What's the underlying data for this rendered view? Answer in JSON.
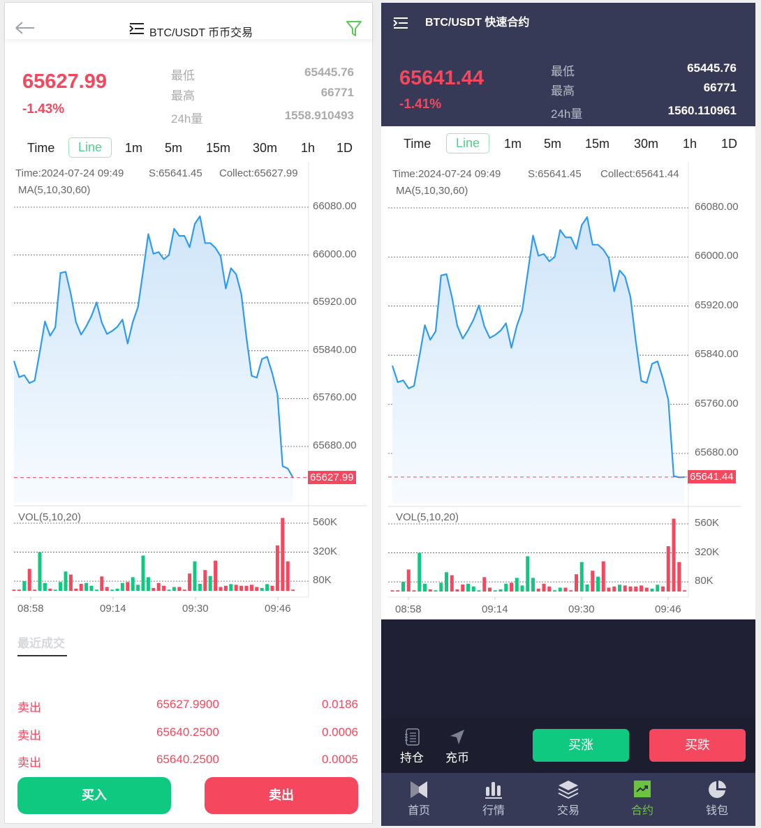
{
  "spot": {
    "header": {
      "title": "BTC/USDT 币币交易",
      "back_icon": "arrow-left-icon",
      "menu_icon": "menu-icon",
      "filter_icon": "filter-icon",
      "filter_color": "#5cc85a"
    },
    "price": "65627.99",
    "change": "-1.43%",
    "stats": [
      {
        "label": "最低",
        "value": "65445.76"
      },
      {
        "label": "最高",
        "value": "66771"
      },
      {
        "label": "24h量",
        "value": "1558.910493"
      }
    ],
    "tabs": [
      "Time",
      "Line",
      "1m",
      "5m",
      "15m",
      "30m",
      "1h",
      "1D"
    ],
    "active_tab": "Line",
    "info": {
      "time": "Time:2024-07-24 09:49",
      "s": "S:65641.45",
      "collect": "Collect:65627.99",
      "ma": "MA(5,10,30,60)",
      "vol": "VOL(5,10,20)"
    },
    "recent_title": "最近成交",
    "trades": [
      {
        "side": "卖出",
        "price": "65627.9900",
        "amount": "0.0186"
      },
      {
        "side": "卖出",
        "price": "65640.2500",
        "amount": "0.0006"
      },
      {
        "side": "卖出",
        "price": "65640.2500",
        "amount": "0.0005"
      }
    ],
    "buy_label": "买入",
    "sell_label": "卖出"
  },
  "contract": {
    "header": {
      "title": "BTC/USDT 快速合约",
      "menu_icon": "menu-icon"
    },
    "price": "65641.44",
    "change": "-1.41%",
    "stats": [
      {
        "label": "最低",
        "value": "65445.76"
      },
      {
        "label": "最高",
        "value": "66771"
      },
      {
        "label": "24h量",
        "value": "1560.110961"
      }
    ],
    "tabs": [
      "Time",
      "Line",
      "1m",
      "5m",
      "15m",
      "30m",
      "1h",
      "1D"
    ],
    "active_tab": "Line",
    "info": {
      "time": "Time:2024-07-24 09:49",
      "s": "S:65641.45",
      "collect": "Collect:65641.44",
      "ma": "MA(5,10,30,60)",
      "vol": "VOL(5,10,20)"
    },
    "actions": [
      {
        "label": "持仓",
        "icon": "notebook-icon"
      },
      {
        "label": "充币",
        "icon": "send-arrow-icon"
      }
    ],
    "buy_up_label": "买涨",
    "buy_down_label": "买跌",
    "nav": [
      {
        "label": "首页",
        "icon": "home-logo-icon"
      },
      {
        "label": "行情",
        "icon": "bar-chart-icon"
      },
      {
        "label": "交易",
        "icon": "layers-icon"
      },
      {
        "label": "合约",
        "icon": "trend-chart-icon",
        "active": true
      },
      {
        "label": "钱包",
        "icon": "pie-chart-icon"
      }
    ],
    "nav_active_color": "#6cc33f"
  },
  "colors": {
    "up": "#10c981",
    "down": "#f5475d",
    "line": "#2f9bf0"
  },
  "chart_data": [
    {
      "type": "line",
      "panel": "spot",
      "x": [
        "08:55",
        "08:56",
        "08:57",
        "08:58",
        "08:59",
        "09:00",
        "09:01",
        "09:02",
        "09:03",
        "09:04",
        "09:05",
        "09:06",
        "09:07",
        "09:08",
        "09:09",
        "09:10",
        "09:11",
        "09:12",
        "09:13",
        "09:14",
        "09:15",
        "09:16",
        "09:17",
        "09:18",
        "09:19",
        "09:20",
        "09:21",
        "09:22",
        "09:23",
        "09:24",
        "09:25",
        "09:26",
        "09:27",
        "09:28",
        "09:29",
        "09:30",
        "09:31",
        "09:32",
        "09:33",
        "09:34",
        "09:35",
        "09:36",
        "09:37",
        "09:38",
        "09:39",
        "09:40",
        "09:41",
        "09:42",
        "09:43",
        "09:44",
        "09:45",
        "09:46",
        "09:47",
        "09:48",
        "09:49"
      ],
      "price": [
        65823,
        65796,
        65799,
        65786,
        65790,
        65838,
        65889,
        65865,
        65879,
        65970,
        65972,
        65935,
        65888,
        65867,
        65881,
        65898,
        65921,
        65887,
        65868,
        65873,
        65880,
        65892,
        65852,
        65888,
        65913,
        65973,
        66035,
        66002,
        66005,
        65993,
        66000,
        66044,
        66032,
        66032,
        66013,
        66052,
        66065,
        66020,
        66020,
        66012,
        65998,
        65944,
        65978,
        65968,
        65935,
        65862,
        65798,
        65795,
        65826,
        65830,
        65802,
        65767,
        65647,
        65643,
        65627.99
      ],
      "volume": [
        10000,
        10000,
        80000,
        182000,
        10000,
        320000,
        65000,
        18000,
        10000,
        73000,
        160000,
        135000,
        18000,
        58000,
        65000,
        42000,
        10000,
        119000,
        32000,
        10000,
        18000,
        65000,
        73000,
        113000,
        50000,
        292000,
        113000,
        24000,
        65000,
        42000,
        10000,
        32000,
        32000,
        10000,
        143000,
        244000,
        58000,
        172000,
        123000,
        250000,
        32000,
        42000,
        56000,
        50000,
        42000,
        42000,
        50000,
        32000,
        24000,
        56000,
        42000,
        375000,
        603000,
        244000,
        10000
      ],
      "volume_dir": [
        "d",
        "d",
        "u",
        "d",
        "d",
        "u",
        "u",
        "d",
        "u",
        "u",
        "u",
        "d",
        "d",
        "d",
        "u",
        "u",
        "u",
        "d",
        "d",
        "u",
        "u",
        "u",
        "d",
        "u",
        "u",
        "u",
        "u",
        "d",
        "d",
        "d",
        "u",
        "u",
        "d",
        "d",
        "d",
        "u",
        "u",
        "d",
        "u",
        "d",
        "d",
        "d",
        "u",
        "d",
        "d",
        "d",
        "d",
        "d",
        "u",
        "u",
        "d",
        "d",
        "d",
        "d",
        "d"
      ],
      "y_ticks": [
        "66080.00",
        "66000.00",
        "65920.00",
        "65840.00",
        "65760.00",
        "65680.00"
      ],
      "ylim": [
        65680,
        66080
      ],
      "last_price_label": "65627.99",
      "vol_ticks": [
        "560K",
        "320K",
        "80K"
      ],
      "vol_tick_values": [
        560000,
        320000,
        80000
      ],
      "x_ticks": [
        "08:58",
        "09:14",
        "09:30",
        "09:46"
      ]
    },
    {
      "type": "line",
      "panel": "contract",
      "price": [
        65823,
        65796,
        65799,
        65786,
        65790,
        65838,
        65889,
        65865,
        65879,
        65970,
        65972,
        65935,
        65888,
        65867,
        65881,
        65898,
        65921,
        65887,
        65868,
        65873,
        65880,
        65892,
        65852,
        65888,
        65913,
        65973,
        66035,
        66002,
        66005,
        65993,
        66000,
        66044,
        66032,
        66032,
        66013,
        66052,
        66065,
        66020,
        66020,
        66012,
        65998,
        65944,
        65978,
        65968,
        65935,
        65862,
        65798,
        65795,
        65826,
        65830,
        65802,
        65767,
        65643,
        65641,
        65641.44
      ],
      "volume": [
        10000,
        10000,
        80000,
        182000,
        10000,
        320000,
        65000,
        18000,
        10000,
        73000,
        160000,
        135000,
        18000,
        58000,
        65000,
        42000,
        10000,
        119000,
        32000,
        10000,
        18000,
        65000,
        73000,
        113000,
        50000,
        292000,
        113000,
        24000,
        65000,
        42000,
        10000,
        32000,
        32000,
        10000,
        143000,
        244000,
        58000,
        172000,
        123000,
        250000,
        32000,
        42000,
        56000,
        50000,
        42000,
        42000,
        50000,
        32000,
        24000,
        56000,
        42000,
        375000,
        603000,
        244000,
        10000
      ],
      "volume_dir": [
        "d",
        "d",
        "u",
        "d",
        "d",
        "u",
        "u",
        "d",
        "u",
        "u",
        "u",
        "d",
        "d",
        "d",
        "u",
        "u",
        "u",
        "d",
        "d",
        "u",
        "u",
        "u",
        "d",
        "u",
        "u",
        "u",
        "u",
        "d",
        "d",
        "d",
        "u",
        "u",
        "d",
        "d",
        "d",
        "u",
        "u",
        "d",
        "u",
        "d",
        "d",
        "d",
        "u",
        "d",
        "d",
        "d",
        "d",
        "d",
        "u",
        "u",
        "d",
        "d",
        "d",
        "d",
        "d"
      ],
      "y_ticks": [
        "66080.00",
        "66000.00",
        "65920.00",
        "65840.00",
        "65760.00",
        "65680.00"
      ],
      "ylim": [
        65680,
        66080
      ],
      "last_price_label": "65641.44",
      "vol_ticks": [
        "560K",
        "320K",
        "80K"
      ],
      "vol_tick_values": [
        560000,
        320000,
        80000
      ],
      "x_ticks": [
        "08:58",
        "09:14",
        "09:30",
        "09:46"
      ]
    }
  ]
}
